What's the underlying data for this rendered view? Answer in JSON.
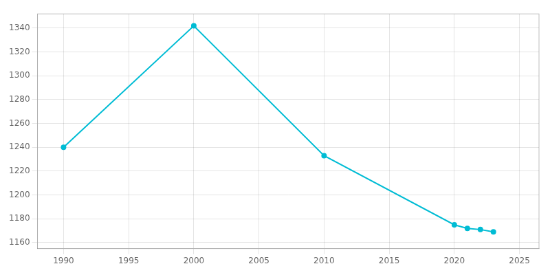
{
  "chart_data": {
    "type": "line",
    "x": [
      1990,
      2000,
      2010,
      2020,
      2021,
      2022,
      2023
    ],
    "values": [
      1240,
      1342,
      1233,
      1175,
      1172,
      1171,
      1169
    ],
    "color": "#00bcd4",
    "marker": "circle",
    "xlim": [
      1988,
      2026.5
    ],
    "ylim": [
      1155,
      1352
    ],
    "xticks": [
      1990,
      1995,
      2000,
      2005,
      2010,
      2015,
      2020,
      2025
    ],
    "yticks": [
      1160,
      1180,
      1200,
      1220,
      1240,
      1260,
      1280,
      1300,
      1320,
      1340
    ],
    "grid": true
  }
}
